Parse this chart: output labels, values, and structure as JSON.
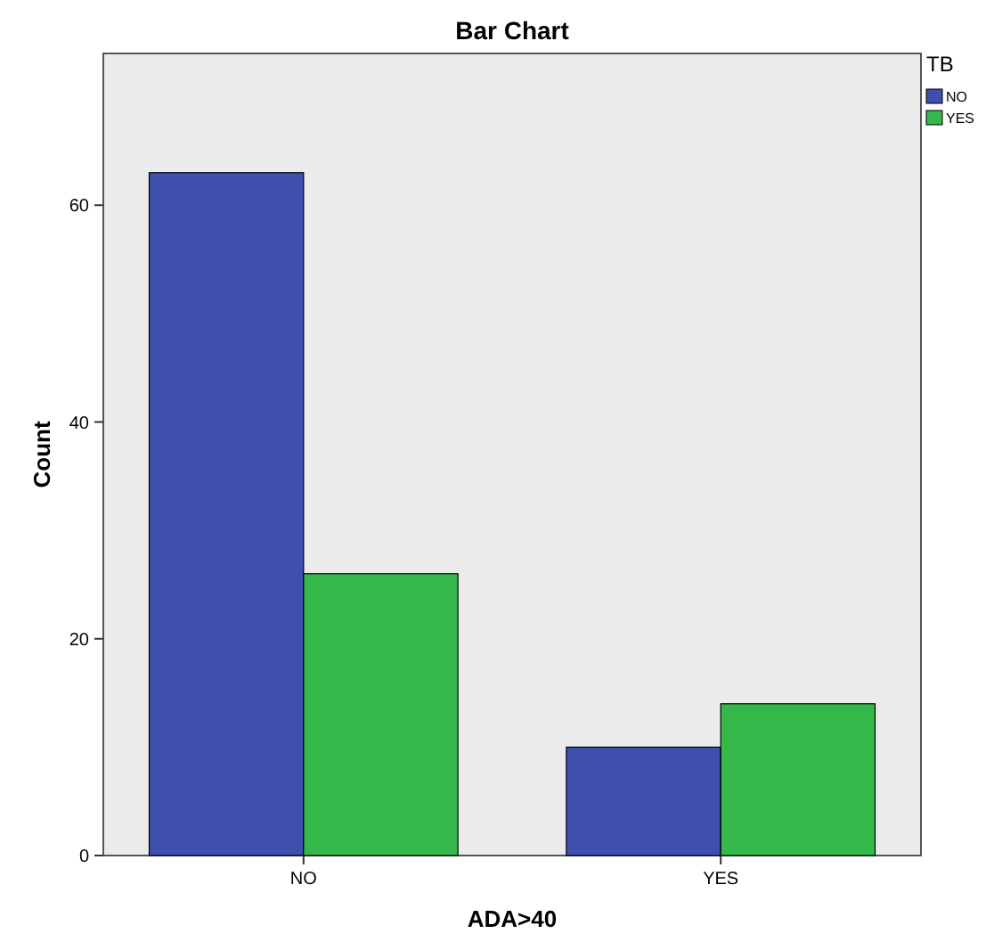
{
  "chart_data": {
    "type": "bar",
    "title": "Bar Chart",
    "xlabel": "ADA>40",
    "ylabel": "Count",
    "legend_title": "TB",
    "categories": [
      "NO",
      "YES"
    ],
    "series": [
      {
        "name": "NO",
        "color": "#3e4fad",
        "values": [
          63,
          10
        ]
      },
      {
        "name": "YES",
        "color": "#35b84a",
        "values": [
          26,
          14
        ]
      }
    ],
    "ylim": [
      0,
      74
    ],
    "yticks": [
      0,
      20,
      40,
      60
    ],
    "grid": false,
    "legend": "top right"
  }
}
